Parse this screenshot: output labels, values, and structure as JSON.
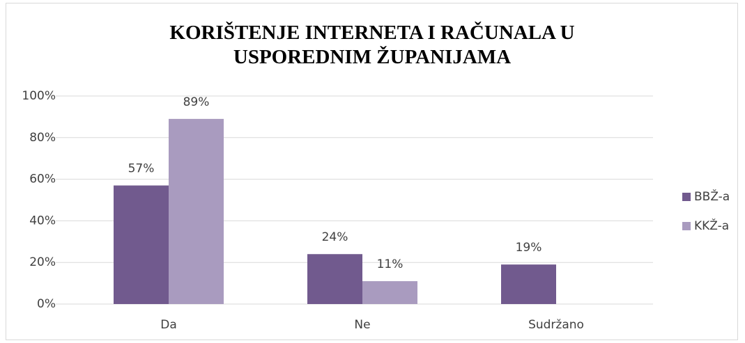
{
  "chart_data": {
    "type": "bar",
    "title": "KORIŠTENJE INTERNETA I RAČUNALA U USPOREDNIM ŽUPANIJAMA",
    "categories": [
      "Da",
      "Ne",
      "Sudržano"
    ],
    "series": [
      {
        "name": "BBŽ-a",
        "color": "#715a8e",
        "values": [
          57,
          24,
          19
        ],
        "value_labels": [
          "57%",
          "24%",
          "19%"
        ]
      },
      {
        "name": "KKŽ-a",
        "color": "#a99bbf",
        "values": [
          89,
          11,
          null
        ],
        "value_labels": [
          "89%",
          "11%",
          null
        ]
      }
    ],
    "ylim": [
      0,
      100
    ],
    "yticks": [
      {
        "value": 0,
        "label": "0%"
      },
      {
        "value": 20,
        "label": "20%"
      },
      {
        "value": 40,
        "label": "40%"
      },
      {
        "value": 60,
        "label": "60%"
      },
      {
        "value": 80,
        "label": "80%"
      },
      {
        "value": 100,
        "label": "100%"
      }
    ],
    "grid": true,
    "legend": "right"
  }
}
